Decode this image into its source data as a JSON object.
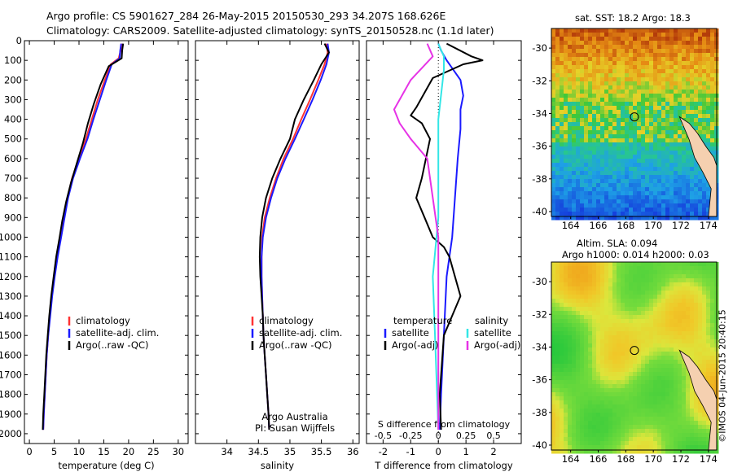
{
  "header": {
    "line1": "Argo profile: CS 5901627_284 26-May-2015 20150530_293 34.207S 168.626E",
    "line2": "Climatology: CARS2009. Satellite-adjusted climatology: synTS_20150528.nc (1.1d later)"
  },
  "footer_stamp": "©IMOS 04-Jun-2015 20:40:15",
  "colors": {
    "climatology": "#ff3333",
    "satellite": "#1a1aff",
    "argo": "#000000",
    "salinity_satellite": "#33e6e6",
    "salinity_argo": "#e633e6",
    "land": "#f5d0b0"
  },
  "chart_data": [
    {
      "type": "line",
      "id": "temperature",
      "xlabel": "temperature (deg C)",
      "ylabel": "",
      "xlim": [
        -1,
        32
      ],
      "ylim": [
        2050,
        0
      ],
      "xticks": [
        0,
        5,
        10,
        15,
        20,
        25,
        30
      ],
      "yticks": [
        0,
        100,
        200,
        300,
        400,
        500,
        600,
        700,
        800,
        900,
        1000,
        1100,
        1200,
        1300,
        1400,
        1500,
        1600,
        1700,
        1800,
        1900,
        2000
      ],
      "legend": {
        "placement": "center-right",
        "entries": [
          "climatology",
          "satellite-adj. clim.",
          "Argo(..raw -QC)"
        ]
      },
      "series": [
        {
          "name": "climatology",
          "color": "red",
          "points": [
            [
              18.6,
              15
            ],
            [
              18.4,
              50
            ],
            [
              18.0,
              90
            ],
            [
              16.4,
              120
            ],
            [
              15.2,
              200
            ],
            [
              13.8,
              300
            ],
            [
              12.6,
              400
            ],
            [
              11.4,
              500
            ],
            [
              10.0,
              600
            ],
            [
              8.6,
              700
            ],
            [
              7.7,
              800
            ],
            [
              7.0,
              900
            ],
            [
              6.3,
              1000
            ],
            [
              5.6,
              1100
            ],
            [
              5.0,
              1200
            ],
            [
              4.5,
              1300
            ],
            [
              4.1,
              1400
            ],
            [
              3.8,
              1500
            ],
            [
              3.5,
              1600
            ],
            [
              3.3,
              1700
            ],
            [
              3.1,
              1800
            ],
            [
              2.9,
              1900
            ],
            [
              2.8,
              1980
            ]
          ]
        },
        {
          "name": "satellite-adj. clim.",
          "color": "blue",
          "points": [
            [
              18.5,
              15
            ],
            [
              18.3,
              50
            ],
            [
              18.2,
              90
            ],
            [
              16.6,
              120
            ],
            [
              15.5,
              200
            ],
            [
              14.2,
              300
            ],
            [
              12.9,
              400
            ],
            [
              11.7,
              500
            ],
            [
              10.2,
              600
            ],
            [
              8.8,
              700
            ],
            [
              7.8,
              800
            ],
            [
              7.1,
              900
            ],
            [
              6.4,
              1000
            ],
            [
              5.7,
              1100
            ],
            [
              5.1,
              1200
            ],
            [
              4.6,
              1300
            ],
            [
              4.2,
              1400
            ],
            [
              3.8,
              1500
            ],
            [
              3.5,
              1600
            ],
            [
              3.3,
              1700
            ],
            [
              3.1,
              1800
            ],
            [
              2.9,
              1900
            ],
            [
              2.8,
              1980
            ]
          ]
        },
        {
          "name": "Argo(..raw -QC)",
          "color": "black",
          "points": [
            [
              18.9,
              15
            ],
            [
              18.7,
              50
            ],
            [
              18.6,
              90
            ],
            [
              16.0,
              130
            ],
            [
              14.4,
              220
            ],
            [
              13.0,
              320
            ],
            [
              11.8,
              420
            ],
            [
              10.8,
              520
            ],
            [
              9.6,
              620
            ],
            [
              8.4,
              720
            ],
            [
              7.4,
              820
            ],
            [
              6.6,
              920
            ],
            [
              6.1,
              1000
            ],
            [
              5.4,
              1100
            ],
            [
              4.9,
              1200
            ],
            [
              4.4,
              1300
            ],
            [
              4.0,
              1400
            ],
            [
              3.7,
              1500
            ],
            [
              3.4,
              1600
            ],
            [
              3.2,
              1700
            ],
            [
              3.0,
              1800
            ],
            [
              2.8,
              1900
            ],
            [
              2.7,
              1980
            ]
          ]
        }
      ]
    },
    {
      "type": "line",
      "id": "salinity",
      "xlabel": "salinity",
      "xlim": [
        33.5,
        36.1
      ],
      "ylim": [
        2050,
        0
      ],
      "xticks": [
        34,
        34.5,
        35,
        35.5,
        36
      ],
      "legend": {
        "placement": "center-right",
        "entries": [
          "climatology",
          "satellite-adj. clim.",
          "Argo(..raw -QC)"
        ]
      },
      "annotation": [
        "Argo Australia",
        "PI: Susan Wijffels"
      ],
      "series": [
        {
          "name": "climatology",
          "color": "red",
          "points": [
            [
              35.58,
              15
            ],
            [
              35.6,
              60
            ],
            [
              35.55,
              120
            ],
            [
              35.45,
              200
            ],
            [
              35.32,
              300
            ],
            [
              35.18,
              400
            ],
            [
              35.05,
              500
            ],
            [
              34.9,
              600
            ],
            [
              34.78,
              700
            ],
            [
              34.68,
              800
            ],
            [
              34.6,
              900
            ],
            [
              34.56,
              1000
            ],
            [
              34.55,
              1100
            ],
            [
              34.55,
              1200
            ],
            [
              34.56,
              1300
            ],
            [
              34.57,
              1400
            ],
            [
              34.58,
              1500
            ],
            [
              34.6,
              1600
            ],
            [
              34.62,
              1700
            ],
            [
              34.64,
              1800
            ],
            [
              34.66,
              1900
            ],
            [
              34.67,
              1980
            ]
          ]
        },
        {
          "name": "satellite-adj. clim.",
          "color": "blue",
          "points": [
            [
              35.6,
              15
            ],
            [
              35.62,
              60
            ],
            [
              35.58,
              120
            ],
            [
              35.49,
              200
            ],
            [
              35.36,
              300
            ],
            [
              35.22,
              400
            ],
            [
              35.08,
              500
            ],
            [
              34.93,
              600
            ],
            [
              34.8,
              700
            ],
            [
              34.7,
              800
            ],
            [
              34.62,
              900
            ],
            [
              34.57,
              1000
            ],
            [
              34.55,
              1100
            ],
            [
              34.55,
              1200
            ],
            [
              34.56,
              1300
            ],
            [
              34.57,
              1400
            ],
            [
              34.58,
              1500
            ],
            [
              34.6,
              1600
            ],
            [
              34.62,
              1700
            ],
            [
              34.64,
              1800
            ],
            [
              34.66,
              1900
            ],
            [
              34.67,
              1980
            ]
          ]
        },
        {
          "name": "Argo(..raw -QC)",
          "color": "black",
          "points": [
            [
              35.55,
              15
            ],
            [
              35.62,
              60
            ],
            [
              35.5,
              120
            ],
            [
              35.38,
              200
            ],
            [
              35.22,
              300
            ],
            [
              35.08,
              400
            ],
            [
              35.0,
              500
            ],
            [
              34.85,
              600
            ],
            [
              34.72,
              700
            ],
            [
              34.62,
              800
            ],
            [
              34.56,
              900
            ],
            [
              34.53,
              1000
            ],
            [
              34.52,
              1100
            ],
            [
              34.53,
              1200
            ],
            [
              34.55,
              1300
            ],
            [
              34.57,
              1400
            ],
            [
              34.58,
              1500
            ],
            [
              34.6,
              1600
            ],
            [
              34.62,
              1700
            ],
            [
              34.64,
              1800
            ],
            [
              34.66,
              1900
            ],
            [
              34.67,
              1980
            ]
          ]
        }
      ]
    },
    {
      "type": "line",
      "id": "difference",
      "xlabel": "T difference from climatology",
      "xlabel_top": "S difference from climatology",
      "xlim": [
        -2.6,
        3.0
      ],
      "ylim": [
        2050,
        0
      ],
      "xticks": [
        -2,
        -1,
        0,
        1,
        2
      ],
      "xticks_top": [
        -0.5,
        -0.25,
        0,
        0.25,
        0.5
      ],
      "legend": {
        "placement": "center",
        "headers": [
          "temperature",
          "salinity"
        ],
        "entries": [
          "satellite",
          "Argo(-adj)",
          "satellite",
          "Argo(-adj)"
        ]
      },
      "series": [
        {
          "name": "T satellite",
          "color": "blue",
          "points": [
            [
              0.0,
              15
            ],
            [
              0.1,
              50
            ],
            [
              0.3,
              100
            ],
            [
              0.8,
              200
            ],
            [
              0.9,
              280
            ],
            [
              0.8,
              350
            ],
            [
              0.8,
              450
            ],
            [
              0.7,
              600
            ],
            [
              0.6,
              800
            ],
            [
              0.5,
              1000
            ],
            [
              0.3,
              1200
            ],
            [
              0.2,
              1500
            ],
            [
              0.1,
              1800
            ],
            [
              0.05,
              1980
            ]
          ]
        },
        {
          "name": "T Argo(-adj)",
          "color": "black",
          "points": [
            [
              0.3,
              15
            ],
            [
              1.2,
              80
            ],
            [
              1.6,
              100
            ],
            [
              0.9,
              120
            ],
            [
              -0.2,
              190
            ],
            [
              -0.8,
              340
            ],
            [
              -1.0,
              380
            ],
            [
              -0.6,
              420
            ],
            [
              -0.3,
              500
            ],
            [
              -0.6,
              700
            ],
            [
              -0.8,
              800
            ],
            [
              -0.5,
              900
            ],
            [
              -0.2,
              1000
            ],
            [
              0.2,
              1050
            ],
            [
              0.4,
              1100
            ],
            [
              0.6,
              1200
            ],
            [
              0.8,
              1300
            ],
            [
              0.5,
              1400
            ],
            [
              0.2,
              1500
            ],
            [
              0.05,
              1800
            ],
            [
              0.1,
              1980
            ]
          ]
        },
        {
          "name": "S satellite",
          "color": "cyan",
          "points": [
            [
              0.0,
              15
            ],
            [
              0.05,
              80
            ],
            [
              0.05,
              150
            ],
            [
              0.0,
              400
            ],
            [
              0.0,
              900
            ],
            [
              -0.05,
              1200
            ],
            [
              -0.03,
              1500
            ],
            [
              0.0,
              1980
            ]
          ]
        },
        {
          "name": "S Argo(-adj)",
          "color": "magenta",
          "points": [
            [
              -0.1,
              15
            ],
            [
              -0.05,
              80
            ],
            [
              -0.25,
              200
            ],
            [
              -0.4,
              350
            ],
            [
              -0.35,
              420
            ],
            [
              -0.25,
              500
            ],
            [
              -0.1,
              600
            ],
            [
              -0.05,
              800
            ],
            [
              0.0,
              1000
            ],
            [
              0.0,
              1980
            ]
          ]
        }
      ]
    },
    {
      "type": "heatmap",
      "id": "sst-map",
      "title": "sat. SST: 18.2  Argo: 18.3",
      "xticks": [
        164,
        166,
        168,
        170,
        172,
        174
      ],
      "yticks": [
        -30,
        -32,
        -34,
        -36,
        -38,
        -40
      ],
      "xlim": [
        162.6,
        174.6
      ],
      "ylim": [
        -40.3,
        -28.8
      ],
      "marker": [
        168.626,
        -34.207
      ]
    },
    {
      "type": "heatmap",
      "id": "sla-map",
      "title": "Altim. SLA: 0.094",
      "subtitle": "Argo h1000: 0.014  h2000: 0.03",
      "xticks": [
        164,
        166,
        168,
        170,
        172,
        174
      ],
      "yticks": [
        -30,
        -32,
        -34,
        -36,
        -38,
        -40
      ],
      "xlim": [
        162.6,
        174.6
      ],
      "ylim": [
        -40.3,
        -28.8
      ],
      "marker": [
        168.626,
        -34.207
      ]
    }
  ]
}
